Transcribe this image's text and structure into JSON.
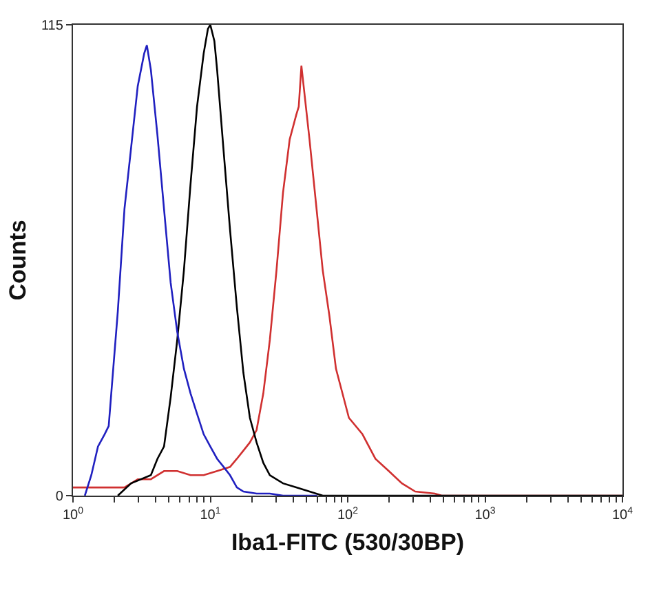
{
  "chart_data": {
    "type": "line",
    "xlabel": "Iba1-FITC (530/30BP)",
    "ylabel": "Counts",
    "log": "x",
    "grid": false,
    "marker": "none",
    "line_style": "solid",
    "xlim": [
      1,
      10000
    ],
    "ylim": [
      0,
      115
    ],
    "yticks": [
      0,
      115
    ],
    "xticks": [
      {
        "value": 1,
        "label": "10$^{0}$"
      },
      {
        "value": 2,
        "label": null
      },
      {
        "value": 3,
        "label": null
      },
      {
        "value": 4,
        "label": null
      },
      {
        "value": 5,
        "label": null
      },
      {
        "value": 6,
        "label": null
      },
      {
        "value": 7,
        "label": null
      },
      {
        "value": 8,
        "label": null
      },
      {
        "value": 9,
        "label": null
      },
      {
        "value": 10,
        "label": "10$^{1}$"
      },
      {
        "value": 20,
        "label": null
      },
      {
        "value": 30,
        "label": null
      },
      {
        "value": 40,
        "label": null
      },
      {
        "value": 50,
        "label": null
      },
      {
        "value": 60,
        "label": null
      },
      {
        "value": 70,
        "label": null
      },
      {
        "value": 80,
        "label": null
      },
      {
        "value": 90,
        "label": null
      },
      {
        "value": 100,
        "label": "10$^{2}$"
      },
      {
        "value": 200,
        "label": null
      },
      {
        "value": 300,
        "label": null
      },
      {
        "value": 400,
        "label": null
      },
      {
        "value": 500,
        "label": null
      },
      {
        "value": 600,
        "label": null
      },
      {
        "value": 700,
        "label": null
      },
      {
        "value": 800,
        "label": null
      },
      {
        "value": 900,
        "label": null
      },
      {
        "value": 1000,
        "label": "10$^{3}$"
      },
      {
        "value": 2000,
        "label": null
      },
      {
        "value": 3000,
        "label": null
      },
      {
        "value": 4000,
        "label": null
      },
      {
        "value": 5000,
        "label": null
      },
      {
        "value": 6000,
        "label": null
      },
      {
        "value": 7000,
        "label": null
      },
      {
        "value": 8000,
        "label": null
      },
      {
        "value": 9000,
        "label": null
      },
      {
        "value": 10000,
        "label": "10$^{4}$"
      }
    ],
    "series": [
      {
        "color": "#d03030",
        "x": [
          1.0,
          2.37,
          2.96,
          3.69,
          4.6,
          5.74,
          7.17,
          8.94,
          11.2,
          13.9,
          15.6,
          17.4,
          19.4,
          21.7,
          24.3,
          27.1,
          30.3,
          33.8,
          37.8,
          42.2,
          44,
          46,
          52.7,
          58.9,
          65.8,
          73.5,
          82.1,
          102,
          128,
          159,
          199,
          248,
          310,
          430,
          483,
          10000
        ],
        "values": [
          2,
          2,
          4,
          4,
          6,
          6,
          5,
          5,
          6,
          7,
          9,
          11,
          13,
          16,
          25,
          38,
          55,
          74,
          87,
          93,
          95,
          105,
          87,
          71,
          55,
          44,
          31,
          19,
          15,
          9,
          6,
          3,
          1,
          0.5,
          0,
          0
        ]
      },
      {
        "color": "#000000",
        "x": [
          2.12,
          2.65,
          3.69,
          4.12,
          4.6,
          5.14,
          5.74,
          6.42,
          7.17,
          8.0,
          8.94,
          9.6,
          9.99,
          10.7,
          11.2,
          12.5,
          13.9,
          15.6,
          17.4,
          19.4,
          21.7,
          24.3,
          27.1,
          33.8,
          42.2,
          52.7,
          65.8,
          10000
        ],
        "values": [
          0,
          3,
          5,
          9,
          12,
          24,
          38,
          55,
          76,
          95,
          108,
          114,
          115,
          111,
          104,
          84,
          65,
          46,
          30,
          19,
          13,
          8,
          5,
          3,
          2,
          1,
          0,
          0
        ]
      },
      {
        "color": "#2020c0",
        "x": [
          1.22,
          1.36,
          1.52,
          1.7,
          1.82,
          1.9,
          2.12,
          2.37,
          2.65,
          2.96,
          3.3,
          3.45,
          3.69,
          4.12,
          4.6,
          5.14,
          5.74,
          6.42,
          7.17,
          8.0,
          8.94,
          9.99,
          11.2,
          12.5,
          13.9,
          15.6,
          17.4,
          21.7,
          27.1,
          33.8,
          60
        ],
        "values": [
          0,
          5,
          12,
          15,
          17,
          25,
          45,
          70,
          85,
          100,
          108,
          110,
          104,
          88,
          70,
          52,
          40,
          31,
          25,
          20,
          15,
          12,
          9,
          7,
          5,
          2,
          1,
          0.5,
          0.5,
          0,
          0
        ]
      }
    ]
  }
}
